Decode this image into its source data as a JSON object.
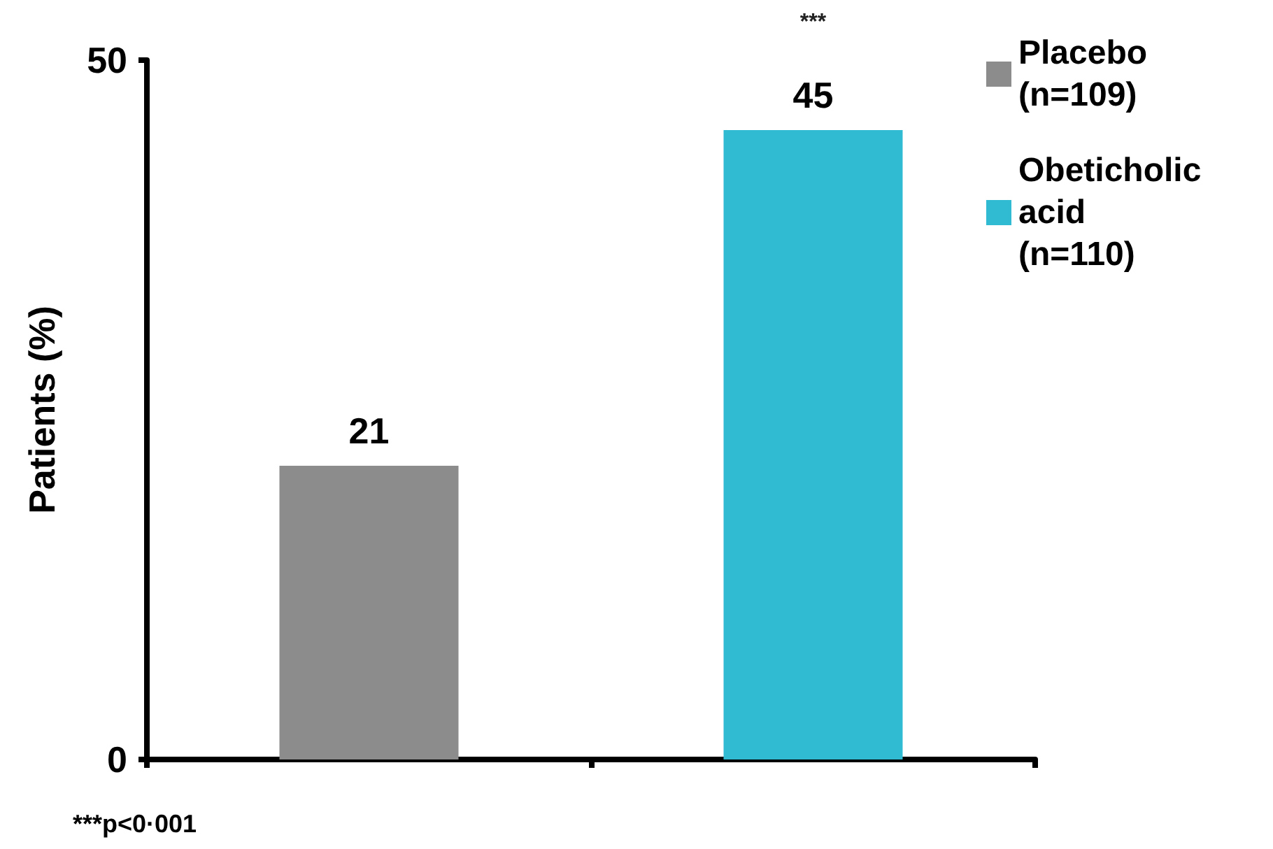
{
  "chart_data": {
    "type": "bar",
    "ylabel": "Patients (%)",
    "categories": [
      null,
      null
    ],
    "series": [
      {
        "name": "Placebo\n(n=109)",
        "color": "#8c8c8c",
        "values": [
          21,
          null
        ]
      },
      {
        "name": "Obeticholic\nacid\n(n=110)",
        "color": "#31bbd3",
        "values": [
          null,
          45
        ]
      }
    ],
    "ylim": [
      0,
      50
    ],
    "yticks": [
      0,
      50
    ],
    "data_labels": true,
    "grid": false,
    "legend": "top right",
    "annotations": [
      "***",
      "***p<0·001"
    ]
  }
}
